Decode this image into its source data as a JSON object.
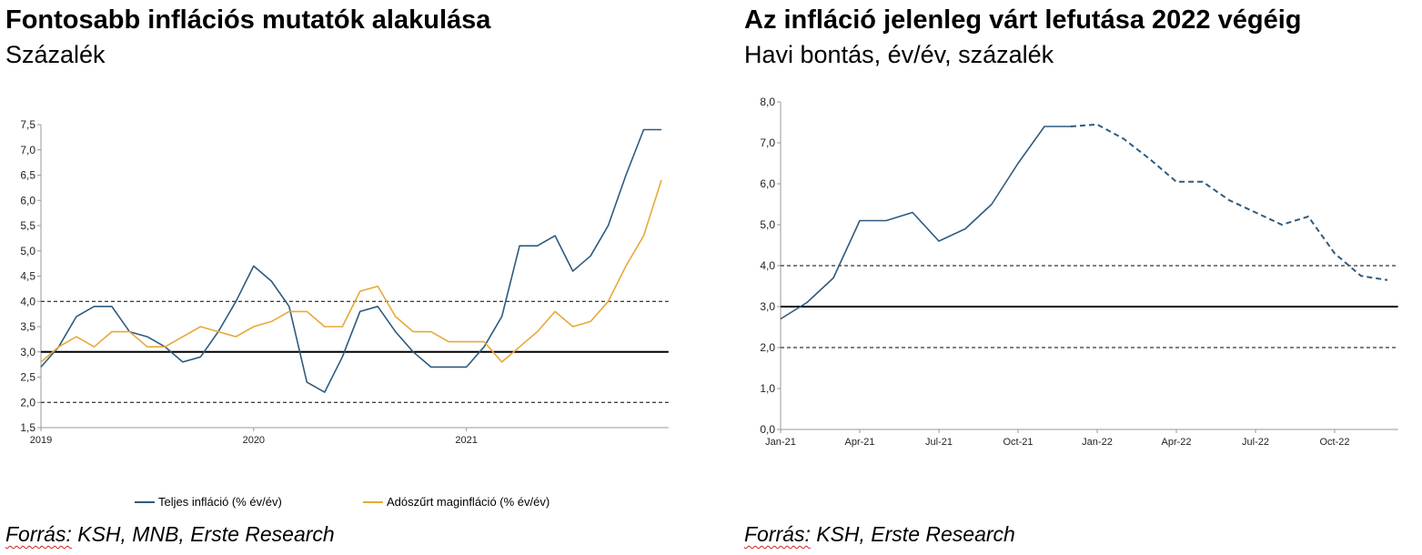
{
  "left": {
    "title": "Fontosabb inflációs mutatók alakulása",
    "subtitle": "Százalék",
    "source_prefix": "Forrás:",
    "source_rest": " KSH, MNB, Erste Research"
  },
  "right": {
    "title": "Az infláció jelenleg várt lefutása 2022 végéig",
    "subtitle": "Havi bontás, év/év, százalék",
    "source_prefix": "Forrás:",
    "source_rest": " KSH, Erste Research"
  },
  "chart_data": [
    {
      "type": "line",
      "x_start": "2019-01",
      "x_period": "month",
      "ylim": [
        1.5,
        7.5
      ],
      "yticks": [
        "1,5",
        "2,0",
        "2,5",
        "3,0",
        "3,5",
        "4,0",
        "4,5",
        "5,0",
        "5,5",
        "6,0",
        "6,5",
        "7,0",
        "7,5"
      ],
      "ytick_values": [
        1.5,
        2.0,
        2.5,
        3.0,
        3.5,
        4.0,
        4.5,
        5.0,
        5.5,
        6.0,
        6.5,
        7.0,
        7.5
      ],
      "xtick_labels": [
        "2019",
        "2020",
        "2021"
      ],
      "xtick_month_index": [
        0,
        12,
        24
      ],
      "series": [
        {
          "name": "Teljes infláció (% év/év)",
          "color": "#2e5a7e",
          "values": [
            2.7,
            3.1,
            3.7,
            3.9,
            3.9,
            3.4,
            3.3,
            3.1,
            2.8,
            2.9,
            3.4,
            4.0,
            4.7,
            4.4,
            3.9,
            2.4,
            2.2,
            2.9,
            3.8,
            3.9,
            3.4,
            3.0,
            2.7,
            2.7,
            2.7,
            3.1,
            3.7,
            5.1,
            5.1,
            5.3,
            4.6,
            4.9,
            5.5,
            6.5,
            7.4,
            7.4
          ]
        },
        {
          "name": "Adószűrt maginfláció (% év/év)",
          "color": "#e8a838",
          "values": [
            2.8,
            3.1,
            3.3,
            3.1,
            3.4,
            3.4,
            3.1,
            3.1,
            3.3,
            3.5,
            3.4,
            3.3,
            3.5,
            3.6,
            3.8,
            3.8,
            3.5,
            3.5,
            4.2,
            4.3,
            3.7,
            3.4,
            3.4,
            3.2,
            3.2,
            3.2,
            2.8,
            3.1,
            3.4,
            3.8,
            3.5,
            3.6,
            4.0,
            4.7,
            5.3,
            6.4
          ]
        }
      ],
      "reference_lines": [
        {
          "value": 3.0,
          "style": "solid"
        },
        {
          "value": 4.0,
          "style": "dashed"
        },
        {
          "value": 2.0,
          "style": "dashed"
        }
      ],
      "legend_placement": "bottom"
    },
    {
      "type": "line",
      "x_start": "2021-01",
      "x_period": "month",
      "ylim": [
        0.0,
        8.0
      ],
      "yticks": [
        "0,0",
        "1,0",
        "2,0",
        "3,0",
        "4,0",
        "5,0",
        "6,0",
        "7,0",
        "8,0"
      ],
      "ytick_values": [
        0,
        1,
        2,
        3,
        4,
        5,
        6,
        7,
        8
      ],
      "xtick_labels": [
        "Jan-21",
        "Apr-21",
        "Jul-21",
        "Oct-21",
        "Jan-22",
        "Apr-22",
        "Jul-22",
        "Oct-22"
      ],
      "xtick_month_index": [
        0,
        3,
        6,
        9,
        12,
        15,
        18,
        21
      ],
      "series": [
        {
          "name": "",
          "color": "#2e5a7e",
          "style": "solid",
          "start_index": 0,
          "values": [
            2.7,
            3.1,
            3.7,
            5.1,
            5.1,
            5.3,
            4.6,
            4.9,
            5.5,
            6.5,
            7.4,
            7.4
          ]
        },
        {
          "name": "",
          "color": "#2e5a7e",
          "style": "dashed",
          "start_index": 11,
          "values": [
            7.4,
            7.45,
            7.1,
            6.6,
            6.05,
            6.05,
            5.6,
            5.3,
            5.0,
            5.2,
            4.3,
            3.75,
            3.65
          ]
        }
      ],
      "reference_lines": [
        {
          "value": 3.0,
          "style": "solid"
        },
        {
          "value": 4.0,
          "style": "dashed"
        },
        {
          "value": 2.0,
          "style": "dashed"
        }
      ],
      "legend_placement": "none"
    }
  ]
}
